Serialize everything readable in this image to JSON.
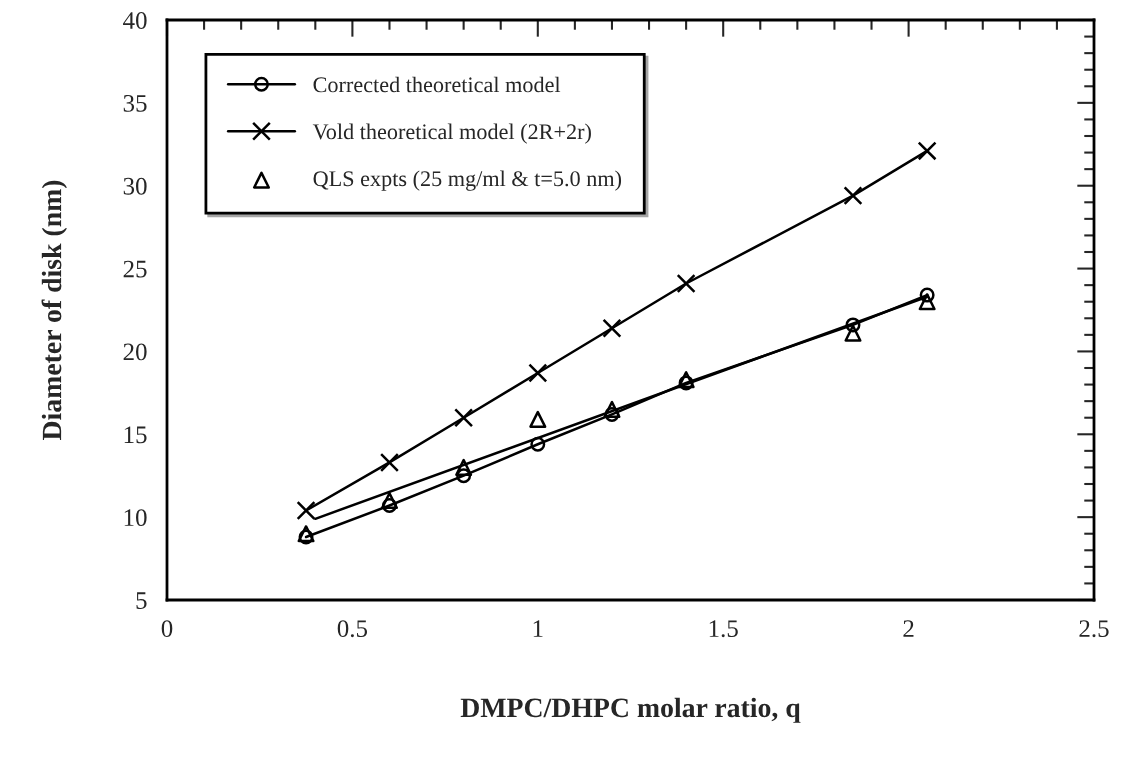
{
  "chart_data": {
    "type": "line",
    "xlabel": "DMPC/DHPC molar ratio, q",
    "ylabel": "Diameter of disk (nm)",
    "xlim": [
      0,
      2.5
    ],
    "xticks": [
      0,
      0.5,
      1,
      1.5,
      2,
      2.5
    ],
    "ylim": [
      5,
      40
    ],
    "yticks": [
      5,
      10,
      15,
      20,
      25,
      30,
      35,
      40
    ],
    "grid": false,
    "legend": "top left",
    "series": [
      {
        "name": "Corrected theoretical model",
        "color": "#000000",
        "marker": "circle",
        "x": [
          0.375,
          0.6,
          0.8,
          1.0,
          1.2,
          1.4,
          1.85,
          2.05
        ],
        "values": [
          8.8,
          10.7,
          12.5,
          14.4,
          16.2,
          18.1,
          21.6,
          23.4
        ]
      },
      {
        "name": "Vold theoretical model (2R+2r)",
        "color": "#000000",
        "marker": "cross",
        "x": [
          0.375,
          0.6,
          0.8,
          1.0,
          1.2,
          1.4,
          1.85,
          2.05
        ],
        "values": [
          10.4,
          13.3,
          16.0,
          18.7,
          21.4,
          24.1,
          29.4,
          32.1
        ]
      },
      {
        "name": "QLS expts (25 mg/ml & t=5.0 nm)",
        "type": "scatter",
        "color": "#000000",
        "marker": "triangle",
        "x": [
          0.375,
          0.6,
          0.8,
          1.0,
          1.2,
          1.4,
          1.85,
          2.05
        ],
        "values": [
          9.0,
          11.0,
          13.0,
          15.9,
          16.5,
          18.3,
          21.1,
          23.0
        ]
      },
      {
        "type": "line",
        "color": "#000000",
        "marker": "none",
        "x": [
          0.4,
          2.05
        ],
        "values": [
          9.9,
          23.3
        ]
      }
    ]
  }
}
